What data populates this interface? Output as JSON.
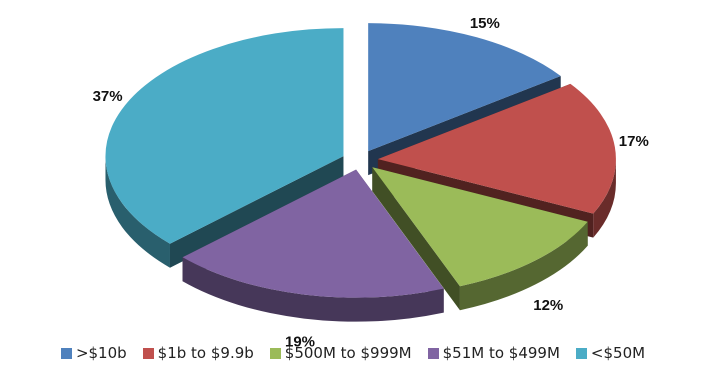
{
  "chart_data": {
    "type": "pie",
    "title": "",
    "categories": [
      ">$10b",
      "$1b to $9.9b",
      "$500M to $999M",
      "$51M to $499M",
      "<$50M"
    ],
    "values": [
      15,
      17,
      12,
      19,
      37
    ],
    "labels": [
      "15%",
      "17%",
      "12%",
      "19%",
      "37%"
    ],
    "colors": [
      "#4f81bd",
      "#c0504d",
      "#9bbb59",
      "#8064a2",
      "#4bacc6"
    ],
    "exploded": true,
    "three_d": true,
    "legend_position": "bottom"
  }
}
